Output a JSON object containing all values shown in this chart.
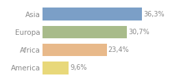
{
  "categories": [
    "Asia",
    "Europa",
    "Africa",
    "America"
  ],
  "values": [
    36.3,
    30.7,
    23.4,
    9.6
  ],
  "labels": [
    "36,3%",
    "30,7%",
    "23,4%",
    "9,6%"
  ],
  "bar_colors": [
    "#7b9fc7",
    "#a8bb8a",
    "#e8b98a",
    "#e8d87a"
  ],
  "background_color": "#ffffff",
  "xlim": [
    0,
    46
  ],
  "bar_height": 0.72,
  "label_fontsize": 7,
  "tick_fontsize": 7.5,
  "text_color": "#888888"
}
